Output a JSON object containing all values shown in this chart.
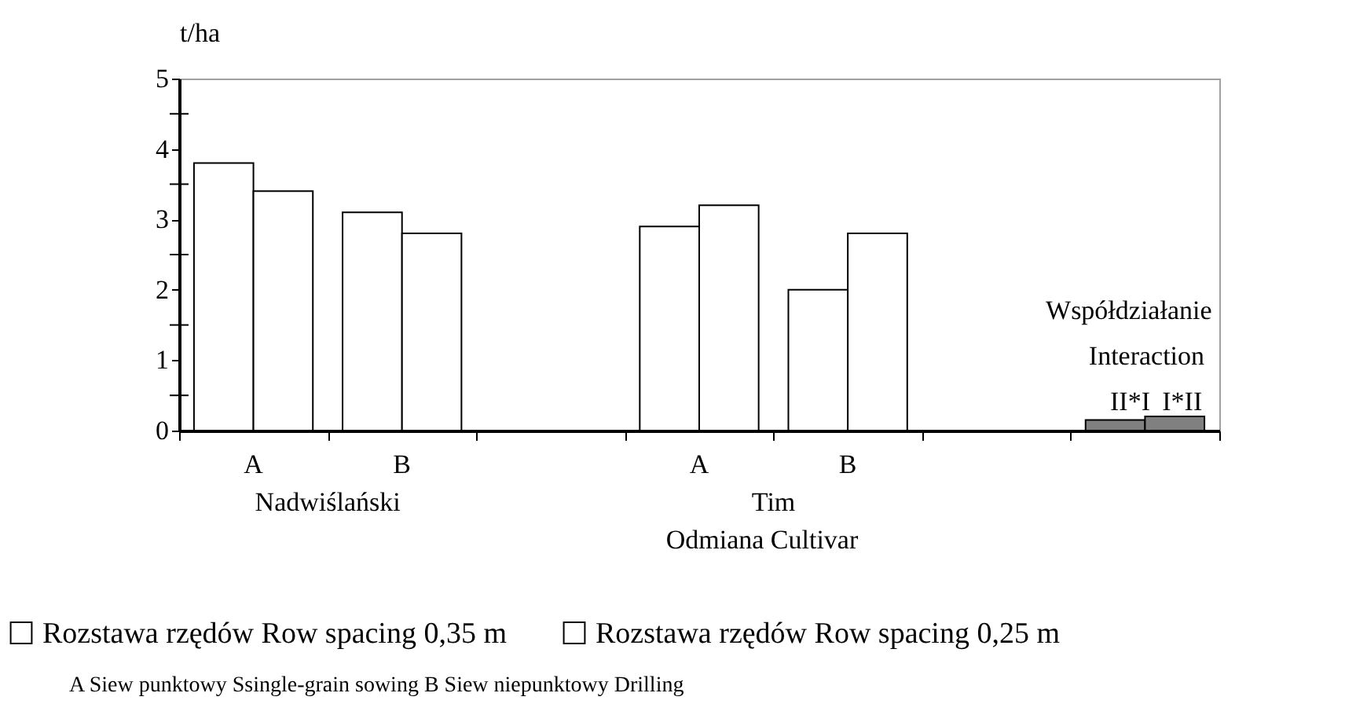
{
  "chart_data": {
    "type": "bar",
    "ylabel": "t/ha",
    "xlabel": "Odmiana Cultivar",
    "categories": [
      "A",
      "B",
      null,
      "A",
      "B",
      null,
      null
    ],
    "series": [
      {
        "name": "Rozstawa rzędów Row spacing  0,35 m",
        "color": "#ffffff",
        "colors": [
          "#ffffff",
          "#ffffff",
          "#ffffff",
          "#ffffff",
          "#ffffff",
          "#ffffff",
          "#808080"
        ],
        "values": [
          3.8,
          3.1,
          null,
          2.9,
          2.0,
          null,
          0.15
        ]
      },
      {
        "name": "Rozstawa rzędów  Row spacing  0,25 m",
        "color": "#ffffff",
        "colors": [
          "#ffffff",
          "#ffffff",
          "#ffffff",
          "#ffffff",
          "#ffffff",
          "#ffffff",
          "#808080"
        ],
        "values": [
          3.4,
          2.8,
          null,
          3.2,
          2.8,
          null,
          0.2
        ]
      }
    ],
    "ylim": [
      0,
      5
    ],
    "yticks": [
      0,
      {
        "value": 0.5,
        "label": null
      },
      1,
      {
        "value": 1.5,
        "label": null
      },
      2,
      {
        "value": 2.5,
        "label": null
      },
      3,
      {
        "value": 3.5,
        "label": null
      },
      4,
      {
        "value": 4.5,
        "label": null
      },
      5
    ],
    "grid": false,
    "legend": "bottom",
    "annotations": [
      "Nadwiślański",
      "Tim",
      "Współdziałanie",
      "Interaction",
      "II*I",
      "I*II",
      "A  Siew punktowy Ssingle-grain sowing   B  Siew niepunktowy   Drilling"
    ]
  }
}
